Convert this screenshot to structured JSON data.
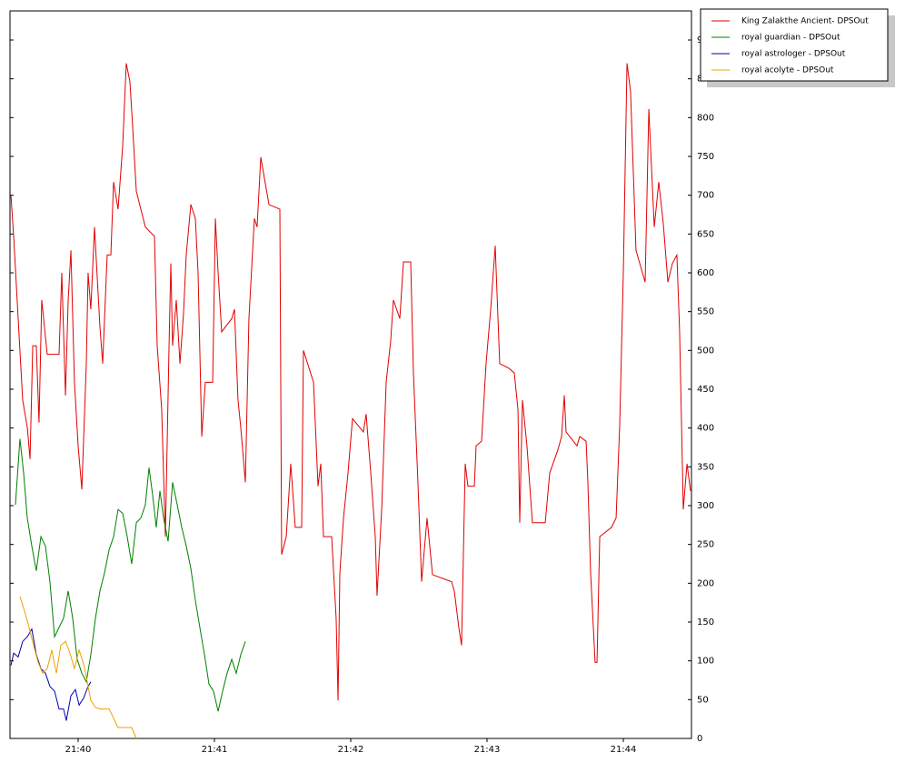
{
  "chart_data": {
    "type": "line",
    "legend": "outside-upper-right",
    "xlim": [
      1299.5,
      1304.5
    ],
    "xticks": [
      {
        "value": 1300,
        "label": "21:40"
      },
      {
        "value": 1301,
        "label": "21:41"
      },
      {
        "value": 1302,
        "label": "21:42"
      },
      {
        "value": 1303,
        "label": "21:43"
      },
      {
        "value": 1304,
        "label": "21:44"
      }
    ],
    "ylim": [
      0,
      937.5
    ],
    "yticks": [
      0,
      50,
      100,
      150,
      200,
      250,
      300,
      350,
      400,
      450,
      500,
      550,
      600,
      650,
      700,
      750,
      800,
      850,
      900
    ],
    "series": [
      {
        "name": "King Zalakthe Ancient- DPSOut",
        "color": "#e00000",
        "x": [
          1299.507,
          1299.527,
          1299.56,
          1299.593,
          1299.627,
          1299.647,
          1299.667,
          1299.693,
          1299.713,
          1299.733,
          1299.773,
          1299.86,
          1299.88,
          1299.907,
          1299.927,
          1299.947,
          1299.973,
          1300.0,
          1300.027,
          1300.06,
          1300.073,
          1300.093,
          1300.12,
          1300.16,
          1300.18,
          1300.213,
          1300.24,
          1300.26,
          1300.293,
          1300.327,
          1300.353,
          1300.38,
          1300.4,
          1300.427,
          1300.493,
          1300.56,
          1300.58,
          1300.613,
          1300.64,
          1300.667,
          1300.68,
          1300.693,
          1300.72,
          1300.747,
          1300.773,
          1300.793,
          1300.827,
          1300.86,
          1300.88,
          1300.907,
          1300.933,
          1300.987,
          1301.007,
          1301.027,
          1301.053,
          1301.127,
          1301.147,
          1301.173,
          1301.193,
          1301.227,
          1301.253,
          1301.293,
          1301.313,
          1301.34,
          1301.4,
          1301.48,
          1301.493,
          1301.527,
          1301.56,
          1301.593,
          1301.64,
          1301.653,
          1301.727,
          1301.76,
          1301.78,
          1301.8,
          1301.86,
          1301.893,
          1301.907,
          1301.92,
          1301.947,
          1301.98,
          1302.013,
          1302.093,
          1302.113,
          1302.147,
          1302.18,
          1302.193,
          1302.227,
          1302.26,
          1302.293,
          1302.313,
          1302.36,
          1302.387,
          1302.44,
          1302.46,
          1302.493,
          1302.52,
          1302.56,
          1302.6,
          1302.74,
          1302.76,
          1302.793,
          1302.813,
          1302.84,
          1302.86,
          1302.907,
          1302.92,
          1302.96,
          1302.993,
          1303.027,
          1303.06,
          1303.093,
          1303.16,
          1303.2,
          1303.227,
          1303.24,
          1303.26,
          1303.293,
          1303.333,
          1303.427,
          1303.46,
          1303.52,
          1303.547,
          1303.567,
          1303.58,
          1303.66,
          1303.68,
          1303.727,
          1303.74,
          1303.76,
          1303.793,
          1303.807,
          1303.827,
          1303.913,
          1303.947,
          1303.973,
          1304.0,
          1304.027,
          1304.053,
          1304.093,
          1304.16,
          1304.187,
          1304.227,
          1304.26,
          1304.293,
          1304.327,
          1304.36,
          1304.393,
          1304.413,
          1304.44,
          1304.467,
          1304.493
        ],
        "values": [
          700,
          647,
          541,
          436,
          401,
          360,
          506,
          506,
          407,
          565,
          495,
          495,
          600,
          442,
          565,
          629,
          459,
          377,
          321,
          483,
          600,
          553,
          659,
          530,
          483,
          623,
          623,
          717,
          682,
          764,
          870,
          846,
          788,
          705,
          659,
          647,
          506,
          424,
          260,
          506,
          612,
          506,
          565,
          483,
          547,
          623,
          688,
          670,
          600,
          389,
          459,
          459,
          670,
          600,
          524,
          541,
          553,
          436,
          401,
          330,
          541,
          670,
          659,
          749,
          688,
          682,
          237,
          260,
          354,
          272,
          272,
          500,
          459,
          325,
          354,
          260,
          260,
          155,
          49,
          213,
          284,
          342,
          412,
          395,
          418,
          342,
          260,
          184,
          295,
          459,
          512,
          565,
          541,
          614,
          614,
          471,
          330,
          202,
          284,
          211,
          202,
          190,
          143,
          120,
          354,
          325,
          325,
          377,
          383,
          483,
          553,
          635,
          483,
          477,
          471,
          424,
          278,
          436,
          377,
          278,
          278,
          342,
          372,
          389,
          442,
          395,
          377,
          389,
          383,
          330,
          213,
          98,
          98,
          260,
          272,
          284,
          401,
          600,
          870,
          834,
          629,
          588,
          811,
          659,
          717,
          664,
          588,
          612,
          623,
          524,
          295,
          354,
          319
        ]
      },
      {
        "name": "royal guardian - DPSOut",
        "color": "#008000",
        "x": [
          1299.54,
          1299.573,
          1299.6,
          1299.627,
          1299.66,
          1299.693,
          1299.727,
          1299.76,
          1299.793,
          1299.827,
          1299.86,
          1299.893,
          1299.927,
          1299.96,
          1299.993,
          1300.027,
          1300.06,
          1300.093,
          1300.127,
          1300.16,
          1300.193,
          1300.227,
          1300.26,
          1300.293,
          1300.327,
          1300.36,
          1300.393,
          1300.427,
          1300.46,
          1300.493,
          1300.52,
          1300.547,
          1300.573,
          1300.6,
          1300.627,
          1300.66,
          1300.693,
          1300.727,
          1300.76,
          1300.793,
          1300.827,
          1300.86,
          1300.893,
          1300.927,
          1300.96,
          1300.993,
          1301.027,
          1301.06,
          1301.093,
          1301.127,
          1301.16,
          1301.193,
          1301.227
        ],
        "values": [
          301,
          386,
          342,
          284,
          248,
          216,
          260,
          248,
          202,
          131,
          143,
          155,
          190,
          155,
          102,
          84,
          73,
          108,
          155,
          190,
          213,
          243,
          260,
          295,
          290,
          260,
          225,
          278,
          284,
          301,
          349,
          313,
          272,
          319,
          284,
          254,
          330,
          301,
          272,
          248,
          219,
          178,
          143,
          108,
          70,
          61,
          35,
          61,
          84,
          102,
          84,
          108,
          125
        ]
      },
      {
        "name": "royal astrologer - DPSOut",
        "color": "#0000b0",
        "x": [
          1299.507,
          1299.527,
          1299.56,
          1299.593,
          1299.627,
          1299.66,
          1299.693,
          1299.727,
          1299.76,
          1299.793,
          1299.827,
          1299.86,
          1299.893,
          1299.913,
          1299.947,
          1299.98,
          1300.007,
          1300.04,
          1300.073,
          1300.093
        ],
        "values": [
          94,
          110,
          105,
          125,
          131,
          141,
          108,
          90,
          84,
          67,
          61,
          38,
          38,
          23,
          55,
          63,
          43,
          52,
          67,
          73
        ]
      },
      {
        "name": "royal acolyte - DPSOut",
        "color": "#f0a000",
        "x": [
          1299.573,
          1299.607,
          1299.64,
          1299.673,
          1299.707,
          1299.74,
          1299.773,
          1299.807,
          1299.84,
          1299.873,
          1299.907,
          1299.94,
          1299.973,
          1300.007,
          1300.04,
          1300.06,
          1300.093,
          1300.127,
          1300.16,
          1300.227,
          1300.26,
          1300.293,
          1300.393,
          1300.427
        ],
        "values": [
          183,
          164,
          143,
          120,
          98,
          84,
          90,
          114,
          84,
          120,
          125,
          110,
          90,
          114,
          96,
          79,
          49,
          40,
          38,
          38,
          26,
          14,
          14,
          0
        ]
      }
    ]
  }
}
